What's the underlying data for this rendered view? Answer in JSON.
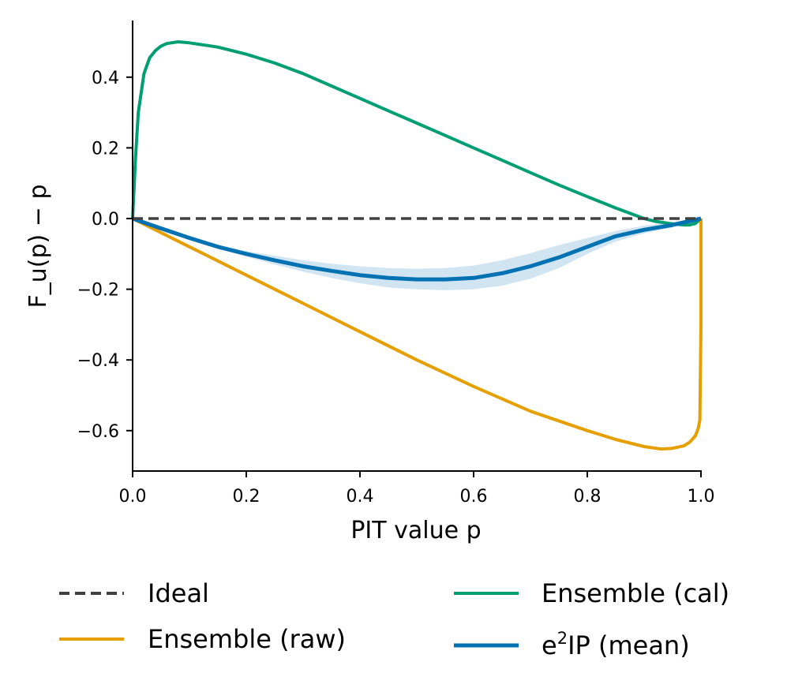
{
  "chart_data": {
    "type": "line",
    "title": "",
    "xlabel": "PIT value p",
    "ylabel": "F_u(p) − p",
    "xlim": [
      0.0,
      1.0
    ],
    "ylim": [
      -0.7,
      0.56
    ],
    "grid": false,
    "xticks": [
      0.0,
      0.2,
      0.4,
      0.6,
      0.8,
      1.0
    ],
    "xtick_labels": [
      "0.0",
      "0.2",
      "0.4",
      "0.6",
      "0.8",
      "1.0"
    ],
    "yticks": [
      0.4,
      0.2,
      0.0,
      -0.2,
      -0.4,
      -0.6
    ],
    "ytick_labels": [
      "0.4",
      "0.2",
      "0.0",
      "−0.2",
      "−0.4",
      "−0.6"
    ],
    "legend_placement": "bottom-outside",
    "series": [
      {
        "name": "Ideal",
        "style": "dashed",
        "color": "#404040",
        "x": [
          0.0,
          1.0
        ],
        "y": [
          0.0,
          0.0
        ]
      },
      {
        "name": "Ensemble (cal)",
        "style": "solid",
        "color": "#009E73",
        "x": [
          0.0,
          0.005,
          0.01,
          0.02,
          0.03,
          0.04,
          0.05,
          0.06,
          0.08,
          0.1,
          0.15,
          0.2,
          0.25,
          0.3,
          0.35,
          0.4,
          0.45,
          0.5,
          0.55,
          0.6,
          0.65,
          0.7,
          0.75,
          0.8,
          0.85,
          0.88,
          0.9,
          0.92,
          0.95,
          0.97,
          0.98,
          0.99,
          1.0
        ],
        "y": [
          0.0,
          0.17,
          0.3,
          0.41,
          0.455,
          0.475,
          0.488,
          0.495,
          0.5,
          0.497,
          0.485,
          0.465,
          0.44,
          0.41,
          0.375,
          0.34,
          0.305,
          0.27,
          0.235,
          0.2,
          0.165,
          0.13,
          0.095,
          0.062,
          0.03,
          0.012,
          0.0,
          -0.008,
          -0.015,
          -0.018,
          -0.018,
          -0.014,
          0.0
        ]
      },
      {
        "name": "Ensemble (raw)",
        "style": "solid",
        "color": "#E69F00",
        "x": [
          0.0,
          0.1,
          0.2,
          0.3,
          0.4,
          0.5,
          0.6,
          0.7,
          0.8,
          0.85,
          0.9,
          0.93,
          0.95,
          0.97,
          0.98,
          0.99,
          0.995,
          0.998,
          1.0,
          1.0
        ],
        "y": [
          0.0,
          -0.08,
          -0.16,
          -0.24,
          -0.32,
          -0.4,
          -0.475,
          -0.545,
          -0.6,
          -0.625,
          -0.645,
          -0.652,
          -0.65,
          -0.643,
          -0.633,
          -0.615,
          -0.595,
          -0.57,
          -0.3,
          0.0
        ]
      },
      {
        "name": "e²IP (mean)",
        "style": "solid",
        "color": "#0072B2",
        "x": [
          0.0,
          0.05,
          0.1,
          0.15,
          0.2,
          0.25,
          0.3,
          0.35,
          0.4,
          0.45,
          0.5,
          0.55,
          0.6,
          0.65,
          0.7,
          0.75,
          0.8,
          0.85,
          0.9,
          0.95,
          1.0
        ],
        "y": [
          0.0,
          -0.028,
          -0.055,
          -0.08,
          -0.1,
          -0.118,
          -0.135,
          -0.148,
          -0.16,
          -0.168,
          -0.172,
          -0.172,
          -0.168,
          -0.155,
          -0.135,
          -0.11,
          -0.08,
          -0.05,
          -0.032,
          -0.018,
          0.0
        ],
        "band_lower": [
          0.0,
          -0.03,
          -0.058,
          -0.085,
          -0.108,
          -0.13,
          -0.15,
          -0.168,
          -0.183,
          -0.195,
          -0.2,
          -0.203,
          -0.2,
          -0.19,
          -0.17,
          -0.14,
          -0.1,
          -0.065,
          -0.042,
          -0.025,
          0.0
        ],
        "band_upper": [
          0.0,
          -0.026,
          -0.052,
          -0.075,
          -0.092,
          -0.105,
          -0.118,
          -0.128,
          -0.135,
          -0.14,
          -0.142,
          -0.14,
          -0.133,
          -0.118,
          -0.098,
          -0.075,
          -0.055,
          -0.035,
          -0.02,
          -0.01,
          0.0
        ],
        "band_color": "#C6DDEF"
      }
    ]
  },
  "legend": {
    "items": [
      {
        "label": "Ideal",
        "color": "#404040",
        "style": "dashed"
      },
      {
        "label": "Ensemble (raw)",
        "color": "#E69F00",
        "style": "solid"
      },
      {
        "label": "Ensemble (cal)",
        "color": "#009E73",
        "style": "solid"
      },
      {
        "label_main": "e",
        "label_sup": "2",
        "label_rest": "IP (mean)",
        "color": "#0072B2",
        "style": "solid"
      }
    ]
  }
}
